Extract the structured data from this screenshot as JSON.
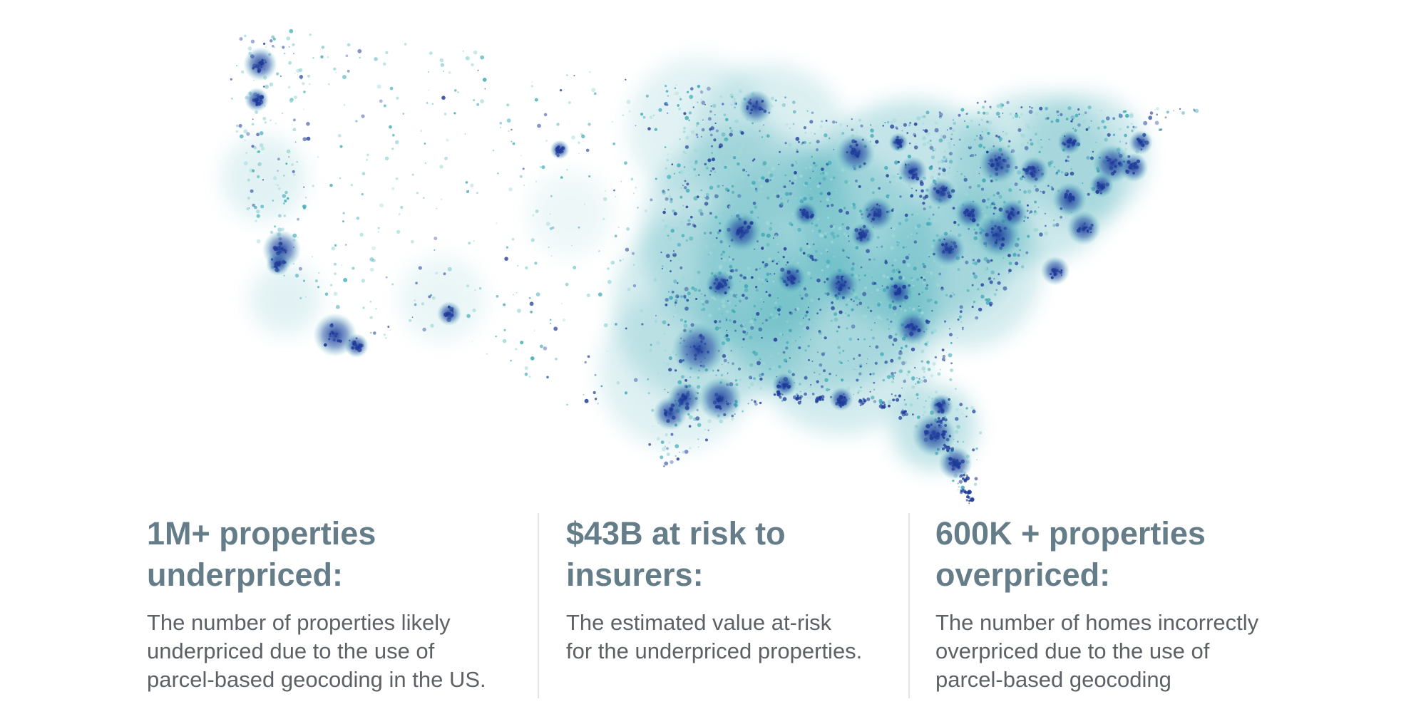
{
  "map": {
    "region": "contiguous-united-states",
    "style": "dot-density",
    "colors": {
      "low": "#9fd8d8",
      "mid": "#3aa8b4",
      "high": "#1e3a99"
    }
  },
  "stats": [
    {
      "heading_line1": "1M+ properties",
      "heading_line2": "underpriced:",
      "desc_line1": "The number of properties likely",
      "desc_line2": "underpriced due to the use of",
      "desc_line3": "parcel-based geocoding in the US."
    },
    {
      "heading_line1": "$43B at risk to",
      "heading_line2": "insurers:",
      "desc_line1": "The estimated value at-risk",
      "desc_line2": "for the underpriced properties.",
      "desc_line3": ""
    },
    {
      "heading_line1": "600K + properties",
      "heading_line2": "overpriced:",
      "desc_line1": "The number of homes incorrectly",
      "desc_line2": "overpriced due to the use of",
      "desc_line3": "parcel-based geocoding"
    }
  ],
  "colors": {
    "heading": "#647d89",
    "body": "#5d6165",
    "divider": "#e2e4e6"
  }
}
